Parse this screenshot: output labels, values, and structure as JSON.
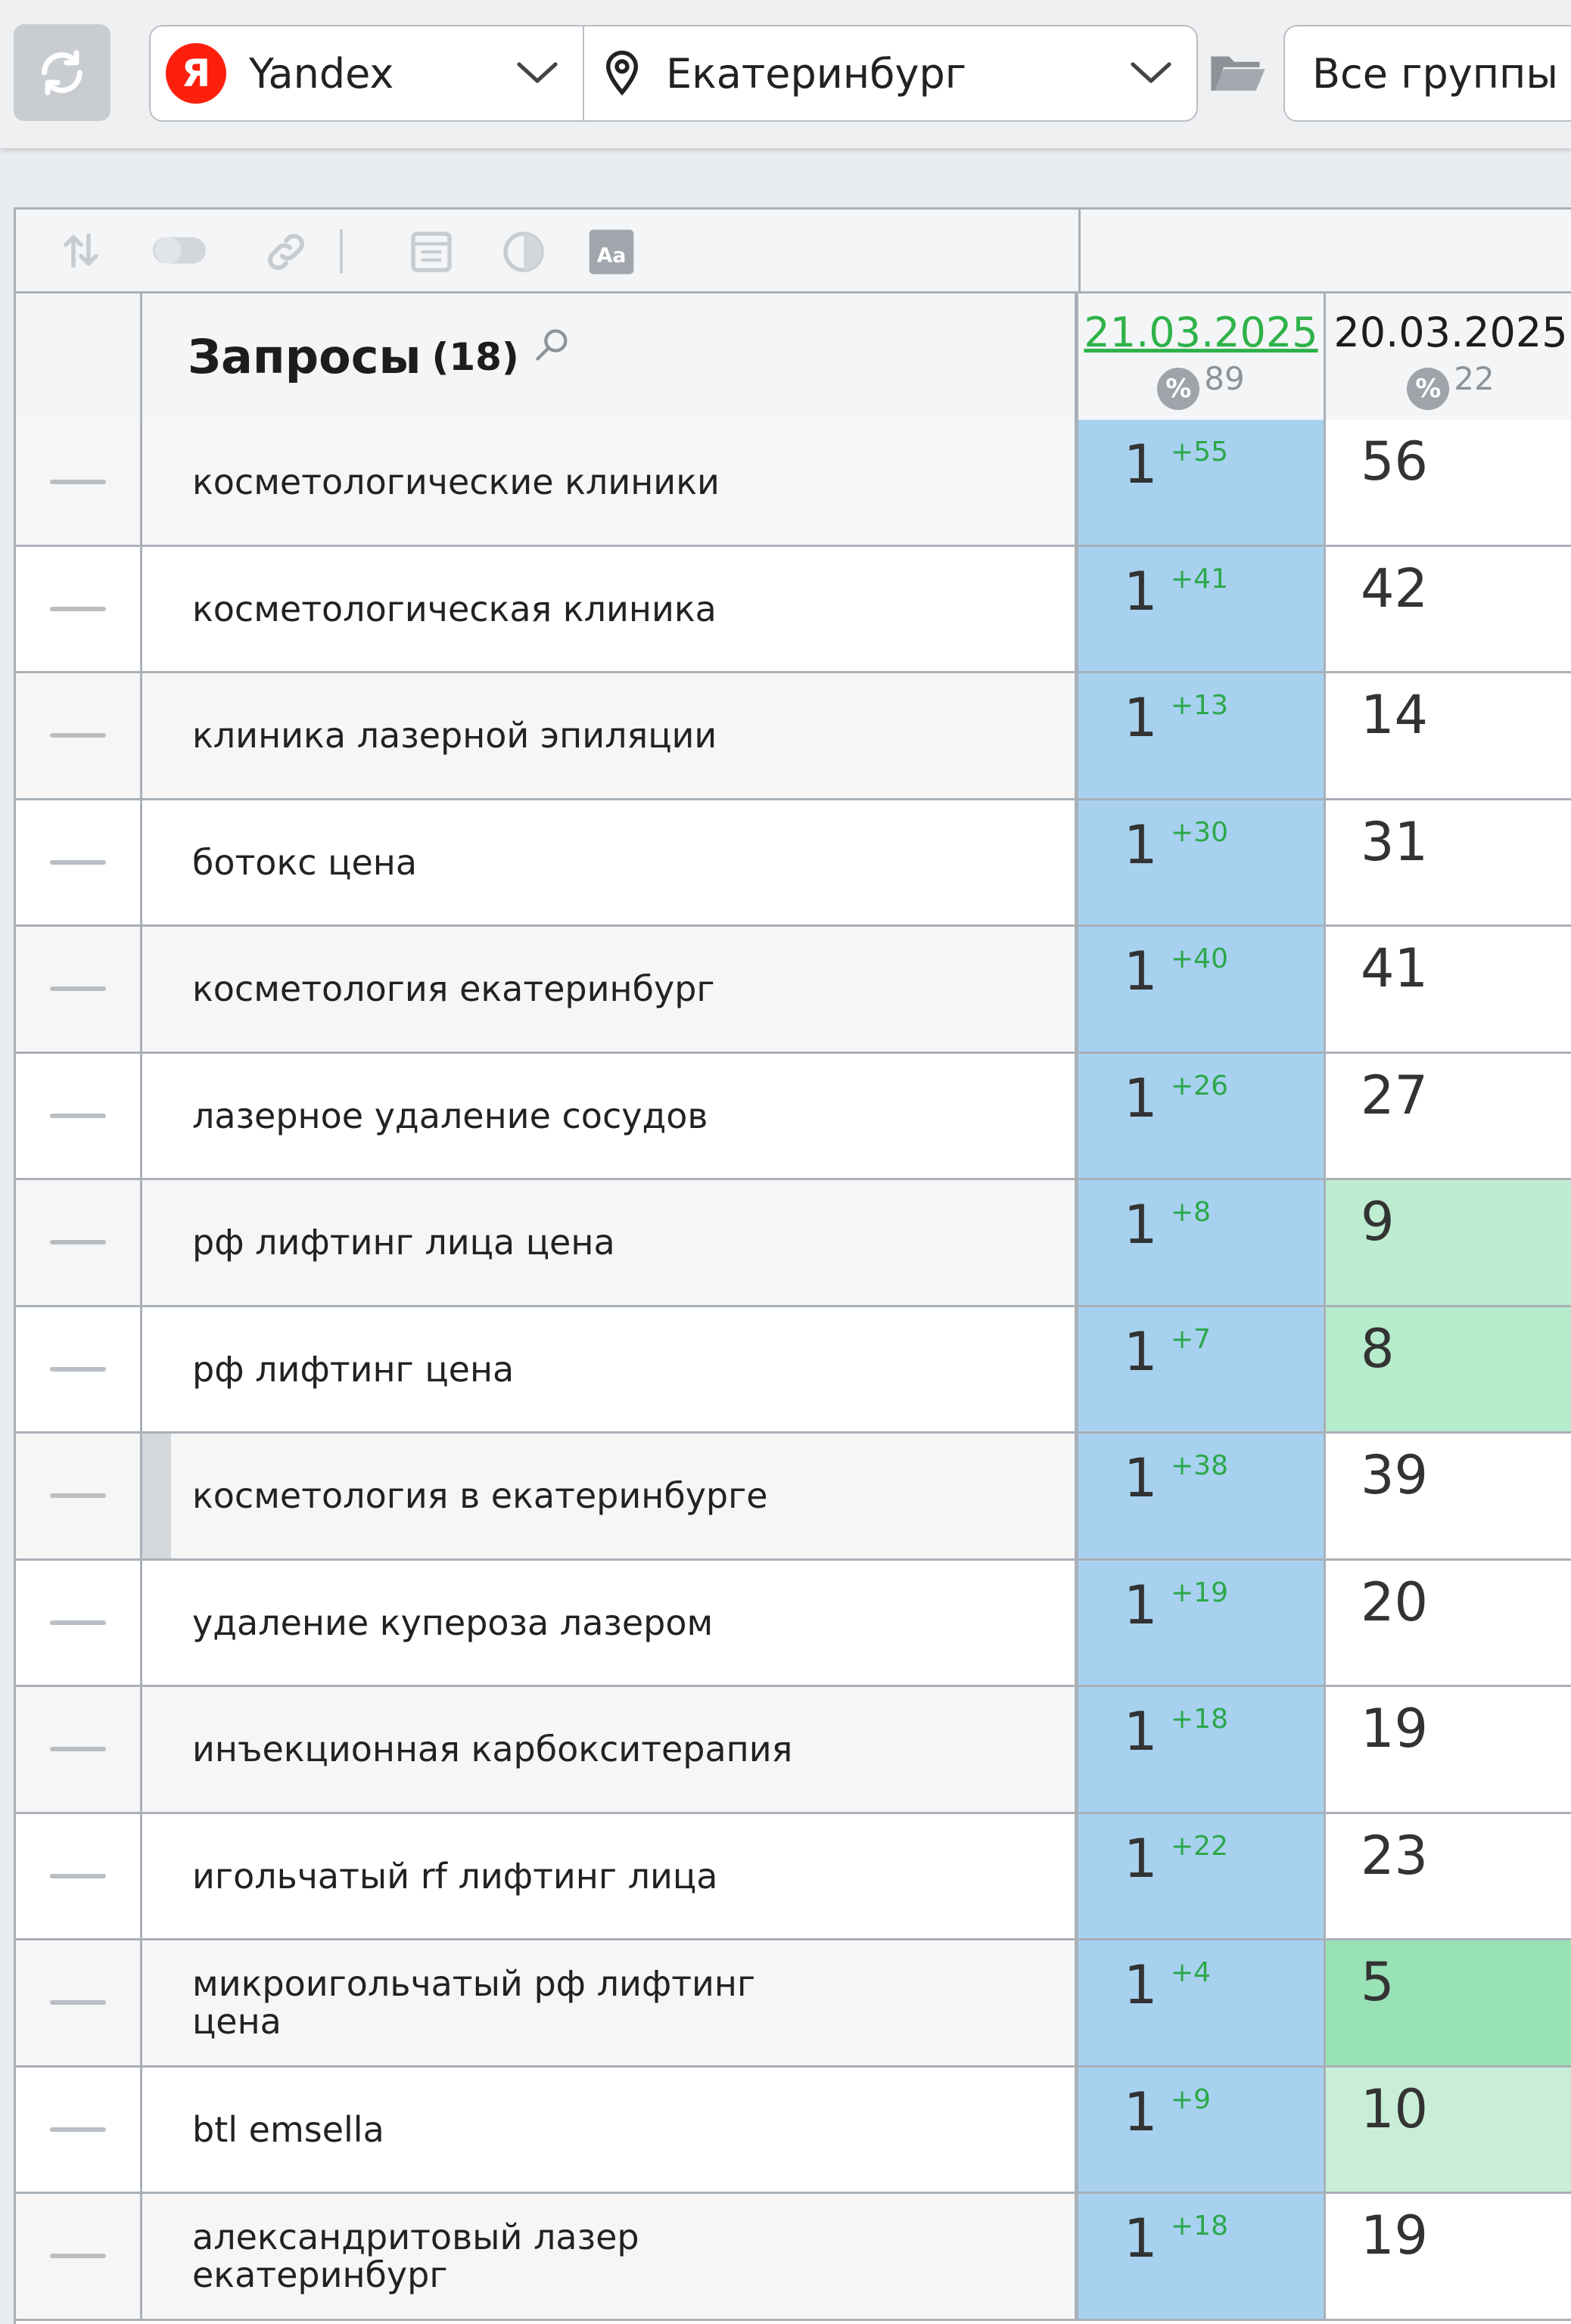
{
  "toolbar": {
    "search_engine": "Yandex",
    "engine_logo_letter": "Я",
    "region": "Екатеринбург",
    "groups": "Все группы"
  },
  "table": {
    "header": {
      "title": "Запросы",
      "count": "(18)",
      "dates": [
        {
          "date": "21.03.2025",
          "percent": "89"
        },
        {
          "date": "20.03.2025",
          "percent": "22"
        }
      ]
    },
    "rows": [
      {
        "query": "косметологические клиники",
        "pos_current": "1",
        "delta": "+55",
        "pos_prev": "56",
        "prev_highlight": ""
      },
      {
        "query": "косметологическая клиника",
        "pos_current": "1",
        "delta": "+41",
        "pos_prev": "42",
        "prev_highlight": ""
      },
      {
        "query": "клиника лазерной эпиляции",
        "pos_current": "1",
        "delta": "+13",
        "pos_prev": "14",
        "prev_highlight": ""
      },
      {
        "query": "ботокс цена",
        "pos_current": "1",
        "delta": "+30",
        "pos_prev": "31",
        "prev_highlight": ""
      },
      {
        "query": "косметология екатеринбург",
        "pos_current": "1",
        "delta": "+40",
        "pos_prev": "41",
        "prev_highlight": ""
      },
      {
        "query": "лазерное удаление сосудов",
        "pos_current": "1",
        "delta": "+26",
        "pos_prev": "27",
        "prev_highlight": ""
      },
      {
        "query": "рф лифтинг лица цена",
        "pos_current": "1",
        "delta": "+8",
        "pos_prev": "9",
        "prev_highlight": "#bdecd0"
      },
      {
        "query": "рф лифтинг цена",
        "pos_current": "1",
        "delta": "+7",
        "pos_prev": "8",
        "prev_highlight": "#b6ebcc"
      },
      {
        "query": "косметология в екатеринбурге",
        "pos_current": "1",
        "delta": "+38",
        "pos_prev": "39",
        "prev_highlight": "",
        "marked": true
      },
      {
        "query": "удаление купероза лазером",
        "pos_current": "1",
        "delta": "+19",
        "pos_prev": "20",
        "prev_highlight": ""
      },
      {
        "query": "инъекционная карбокситерапия",
        "pos_current": "1",
        "delta": "+18",
        "pos_prev": "19",
        "prev_highlight": ""
      },
      {
        "query": "игольчатый rf лифтинг лица",
        "pos_current": "1",
        "delta": "+22",
        "pos_prev": "23",
        "prev_highlight": ""
      },
      {
        "query": "микроигольчатый рф лифтинг\nцена",
        "pos_current": "1",
        "delta": "+4",
        "pos_prev": "5",
        "prev_highlight": "#98e2b6"
      },
      {
        "query": "btl emsella",
        "pos_current": "1",
        "delta": "+9",
        "pos_prev": "10",
        "prev_highlight": "#c9eed8"
      },
      {
        "query": "александритовый лазер\nекатеринбург",
        "pos_current": "1",
        "delta": "+18",
        "pos_prev": "19",
        "prev_highlight": ""
      }
    ]
  },
  "colors": {
    "current_col": "#a8d1f0",
    "delta_green": "#2ca84a",
    "date_link": "#2fb24a"
  },
  "icons": [
    "refresh-icon",
    "chevron-down-icon",
    "location-pin-icon",
    "folder-icon",
    "sort-icon",
    "toggle-icon",
    "link-icon",
    "window-icon",
    "contrast-icon",
    "font-icon",
    "search-icon",
    "percent-icon"
  ]
}
